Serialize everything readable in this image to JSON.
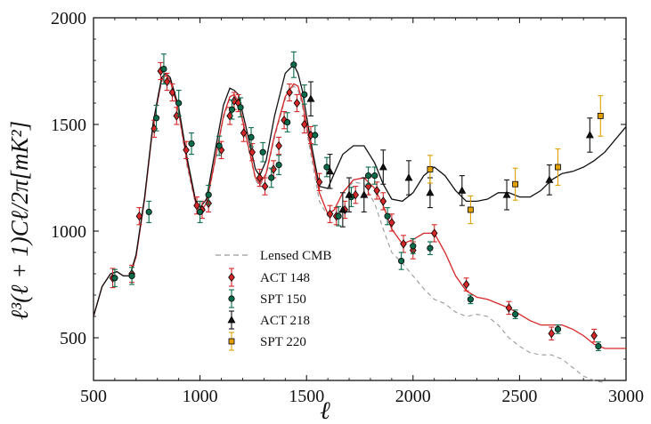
{
  "chart_data": {
    "type": "scatter",
    "xlabel": "ℓ",
    "ylabel": "ℓ³(ℓ + 1)Cℓ/2π[mK²]",
    "xlim": [
      500,
      3000
    ],
    "ylim": [
      300,
      2000
    ],
    "xticks": [
      500,
      1000,
      1500,
      2000,
      2500,
      3000
    ],
    "yticks": [
      500,
      1000,
      1500,
      2000
    ],
    "xtick_labels": [
      "500",
      "1000",
      "1500",
      "2000",
      "2500",
      "3000"
    ],
    "ytick_labels": [
      "500",
      "1000",
      "1500",
      "2000"
    ],
    "legend_position": "center-left",
    "colors": {
      "lensed": "#999999",
      "act148": "#d62728",
      "spt150": "#0a6b4a",
      "act218": "#111111",
      "spt220": "#e0a100"
    },
    "lines": [
      {
        "name": "Lensed CMB",
        "style": "dashed",
        "color": "#999999",
        "x": [
          500,
          540,
          580,
          610,
          640,
          670,
          700,
          740,
          780,
          820,
          840,
          860,
          900,
          940,
          980,
          1000,
          1030,
          1070,
          1110,
          1140,
          1160,
          1180,
          1220,
          1260,
          1280,
          1310,
          1350,
          1400,
          1440,
          1460,
          1480,
          1520,
          1560,
          1600,
          1630,
          1670,
          1720,
          1770,
          1820,
          1860,
          1900,
          1950,
          2000,
          2050,
          2100,
          2150,
          2200,
          2250,
          2300,
          2350,
          2400,
          2450,
          2500,
          2550,
          2600,
          2650,
          2700,
          2750,
          2800,
          2850,
          2900
        ],
        "y": [
          600,
          740,
          800,
          810,
          790,
          790,
          880,
          1150,
          1500,
          1700,
          1720,
          1700,
          1550,
          1300,
          1120,
          1080,
          1120,
          1320,
          1530,
          1620,
          1630,
          1600,
          1420,
          1240,
          1210,
          1260,
          1440,
          1620,
          1680,
          1660,
          1590,
          1360,
          1140,
          1070,
          1100,
          1180,
          1230,
          1220,
          1130,
          1010,
          900,
          850,
          790,
          730,
          680,
          660,
          620,
          600,
          610,
          600,
          560,
          500,
          460,
          430,
          420,
          420,
          400,
          360,
          320,
          300,
          290
        ]
      },
      {
        "name": "ACT 148 model",
        "style": "solid",
        "color": "#d62728",
        "x": [
          500,
          540,
          580,
          610,
          640,
          670,
          700,
          740,
          780,
          820,
          840,
          860,
          900,
          940,
          980,
          1000,
          1030,
          1070,
          1110,
          1140,
          1160,
          1180,
          1220,
          1260,
          1280,
          1310,
          1350,
          1400,
          1440,
          1460,
          1480,
          1520,
          1560,
          1600,
          1630,
          1670,
          1720,
          1770,
          1820,
          1860,
          1900,
          1950,
          2000,
          2050,
          2100,
          2150,
          2200,
          2250,
          2300,
          2350,
          2400,
          2450,
          2500,
          2550,
          2600,
          2650,
          2700,
          2750,
          2800,
          2850,
          2900,
          3000
        ],
        "y": [
          600,
          740,
          800,
          810,
          790,
          790,
          880,
          1150,
          1500,
          1710,
          1730,
          1710,
          1560,
          1320,
          1130,
          1090,
          1130,
          1330,
          1540,
          1630,
          1640,
          1610,
          1430,
          1250,
          1220,
          1270,
          1450,
          1630,
          1690,
          1680,
          1610,
          1390,
          1180,
          1080,
          1100,
          1180,
          1240,
          1250,
          1200,
          1120,
          1010,
          940,
          960,
          990,
          990,
          900,
          790,
          720,
          690,
          680,
          660,
          640,
          610,
          580,
          560,
          560,
          560,
          540,
          510,
          470,
          450,
          450
        ]
      },
      {
        "name": "ACT 218 model",
        "style": "solid",
        "color": "#111111",
        "x": [
          500,
          540,
          580,
          610,
          640,
          670,
          700,
          740,
          780,
          820,
          840,
          860,
          900,
          940,
          980,
          1000,
          1030,
          1070,
          1110,
          1140,
          1160,
          1180,
          1220,
          1260,
          1280,
          1310,
          1350,
          1400,
          1440,
          1460,
          1480,
          1520,
          1560,
          1600,
          1630,
          1670,
          1720,
          1770,
          1820,
          1860,
          1900,
          1950,
          2000,
          2050,
          2100,
          2150,
          2200,
          2250,
          2300,
          2350,
          2400,
          2450,
          2500,
          2550,
          2600,
          2650,
          2700,
          2750,
          2800,
          2850,
          2900,
          3000
        ],
        "y": [
          600,
          740,
          800,
          810,
          790,
          790,
          890,
          1160,
          1510,
          1720,
          1740,
          1720,
          1580,
          1340,
          1140,
          1110,
          1150,
          1370,
          1590,
          1670,
          1660,
          1640,
          1470,
          1290,
          1260,
          1330,
          1540,
          1740,
          1780,
          1740,
          1660,
          1420,
          1210,
          1200,
          1270,
          1360,
          1400,
          1400,
          1320,
          1220,
          1150,
          1140,
          1180,
          1260,
          1300,
          1260,
          1190,
          1140,
          1140,
          1150,
          1180,
          1180,
          1160,
          1160,
          1190,
          1240,
          1270,
          1280,
          1300,
          1330,
          1370,
          1490
        ]
      }
    ],
    "series": [
      {
        "name": "ACT 148",
        "marker": "diamond",
        "color": "#d62728",
        "x": [
          590,
          680,
          715,
          785,
          815,
          845,
          870,
          890,
          935,
          985,
          1010,
          1040,
          1100,
          1140,
          1160,
          1180,
          1205,
          1245,
          1280,
          1305,
          1345,
          1370,
          1395,
          1420,
          1455,
          1490,
          1520,
          1560,
          1610,
          1640,
          1680,
          1730,
          1790,
          1830,
          1860,
          1900,
          1955,
          2000,
          2100,
          2250,
          2450,
          2650,
          2850
        ],
        "y": [
          780,
          800,
          1070,
          1480,
          1750,
          1700,
          1650,
          1540,
          1380,
          1120,
          1100,
          1130,
          1380,
          1540,
          1610,
          1600,
          1460,
          1370,
          1250,
          1210,
          1290,
          1400,
          1520,
          1650,
          1600,
          1500,
          1450,
          1230,
          1080,
          1070,
          1100,
          1170,
          1210,
          1190,
          1140,
          1040,
          940,
          910,
          990,
          750,
          640,
          520,
          510
        ],
        "err": [
          45,
          40,
          40,
          40,
          40,
          40,
          40,
          40,
          40,
          40,
          40,
          40,
          40,
          40,
          40,
          40,
          40,
          40,
          40,
          40,
          40,
          40,
          40,
          40,
          40,
          40,
          40,
          40,
          40,
          40,
          40,
          40,
          40,
          40,
          40,
          40,
          40,
          40,
          40,
          30,
          30,
          30,
          30
        ]
      },
      {
        "name": "SPT 150",
        "marker": "circle",
        "color": "#0a6b4a",
        "x": [
          600,
          680,
          760,
          795,
          830,
          900,
          960,
          1000,
          1040,
          1090,
          1150,
          1190,
          1240,
          1295,
          1335,
          1370,
          1410,
          1440,
          1490,
          1540,
          1595,
          1650,
          1710,
          1790,
          1820,
          1880,
          1945,
          2000,
          2080,
          2270,
          2480,
          2680,
          2870
        ],
        "y": [
          780,
          790,
          1090,
          1530,
          1760,
          1600,
          1410,
          1090,
          1170,
          1400,
          1570,
          1580,
          1440,
          1370,
          1250,
          1310,
          1510,
          1780,
          1640,
          1450,
          1300,
          1070,
          1160,
          1260,
          1260,
          1070,
          860,
          930,
          920,
          680,
          610,
          540,
          460
        ],
        "err": [
          40,
          40,
          50,
          60,
          70,
          60,
          50,
          50,
          45,
          45,
          45,
          45,
          45,
          45,
          45,
          45,
          45,
          60,
          45,
          45,
          45,
          45,
          45,
          40,
          40,
          40,
          40,
          35,
          30,
          20,
          20,
          20,
          20
        ]
      },
      {
        "name": "ACT 218",
        "marker": "triangle",
        "color": "#111111",
        "x": [
          1520,
          1610,
          1670,
          1700,
          1770,
          1860,
          1980,
          2080,
          2230,
          2440,
          2640,
          2830
        ],
        "y": [
          1620,
          1280,
          1100,
          1170,
          1170,
          1300,
          1250,
          1180,
          1190,
          1170,
          1240,
          1450
        ],
        "err": [
          80,
          80,
          80,
          80,
          80,
          80,
          80,
          70,
          70,
          70,
          70,
          80
        ]
      },
      {
        "name": "SPT 220",
        "marker": "square",
        "color": "#e0a100",
        "x": [
          2080,
          2270,
          2480,
          2680,
          2880
        ],
        "y": [
          1290,
          1100,
          1220,
          1300,
          1540
        ],
        "err": [
          65,
          65,
          75,
          85,
          95
        ]
      }
    ],
    "legend": [
      {
        "label": "Lensed CMB",
        "kind": "dashed",
        "color": "#999999"
      },
      {
        "label": "ACT 148",
        "kind": "diamond",
        "color": "#d62728"
      },
      {
        "label": "SPT 150",
        "kind": "circle",
        "color": "#0a6b4a"
      },
      {
        "label": "ACT 218",
        "kind": "triangle",
        "color": "#111111"
      },
      {
        "label": "SPT 220",
        "kind": "square",
        "color": "#e0a100"
      }
    ]
  }
}
